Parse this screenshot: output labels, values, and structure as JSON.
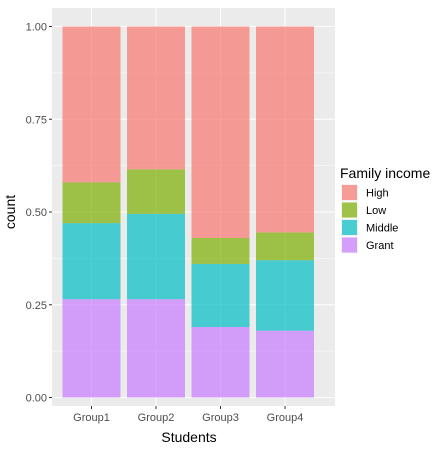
{
  "chart_data": {
    "type": "bar",
    "stacked": true,
    "position": "fill",
    "categories": [
      "Group1",
      "Group2",
      "Group3",
      "Group4"
    ],
    "series": [
      {
        "name": "Grant",
        "color": "#c77cff",
        "values": [
          0.265,
          0.265,
          0.19,
          0.18
        ]
      },
      {
        "name": "Middle",
        "color": "#00bfc4",
        "values": [
          0.205,
          0.23,
          0.17,
          0.19
        ]
      },
      {
        "name": "Low",
        "color": "#7cae00",
        "values": [
          0.11,
          0.12,
          0.07,
          0.075
        ]
      },
      {
        "name": "High",
        "color": "#f8766d",
        "values": [
          0.42,
          0.385,
          0.57,
          0.555
        ]
      }
    ],
    "xlabel": "Students",
    "ylabel": "count",
    "ylim": [
      0,
      1
    ],
    "yticks": [
      0,
      0.25,
      0.5,
      0.75,
      1
    ],
    "ytick_labels": [
      "0.00",
      "0.25",
      "0.50",
      "0.75",
      "1.00"
    ],
    "grid": true,
    "bar_alpha": 0.7,
    "legend": {
      "title": "Family income",
      "placement": "right",
      "entries": [
        "High",
        "Low",
        "Middle",
        "Grant"
      ]
    }
  }
}
